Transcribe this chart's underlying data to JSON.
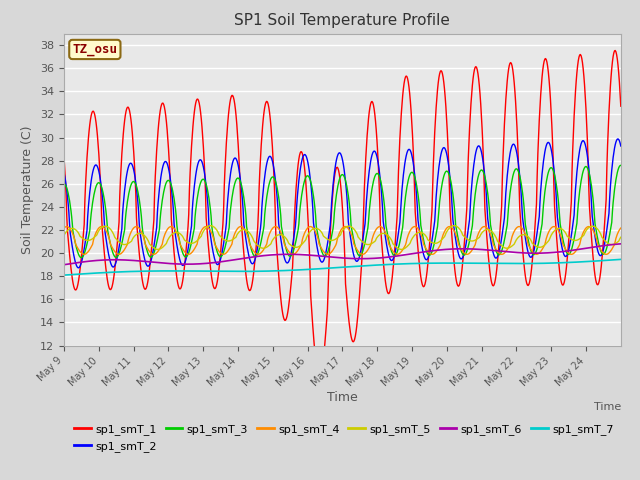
{
  "title": "SP1 Soil Temperature Profile",
  "xlabel": "Time",
  "ylabel": "Soil Temperature (C)",
  "annotation": "TZ_osu",
  "annotation_color": "#8B0000",
  "annotation_bg": "#FFFACD",
  "annotation_border": "#8B6914",
  "ylim": [
    12,
    39
  ],
  "yticks": [
    12,
    14,
    16,
    18,
    20,
    22,
    24,
    26,
    28,
    30,
    32,
    34,
    36,
    38
  ],
  "xtick_labels": [
    "May 9",
    "May 10",
    "May 11",
    "May 12",
    "May 13",
    "May 14",
    "May 15",
    "May 16",
    "May 17",
    "May 18",
    "May 19",
    "May 20",
    "May 21",
    "May 22",
    "May 23",
    "May 24"
  ],
  "series_colors": {
    "sp1_smT_1": "#FF0000",
    "sp1_smT_2": "#0000FF",
    "sp1_smT_3": "#00CC00",
    "sp1_smT_4": "#FF8C00",
    "sp1_smT_5": "#CCCC00",
    "sp1_smT_6": "#AA00AA",
    "sp1_smT_7": "#00CCCC"
  },
  "bg_color": "#D8D8D8",
  "plot_bg": "#E8E8E8",
  "grid_color": "#FFFFFF"
}
